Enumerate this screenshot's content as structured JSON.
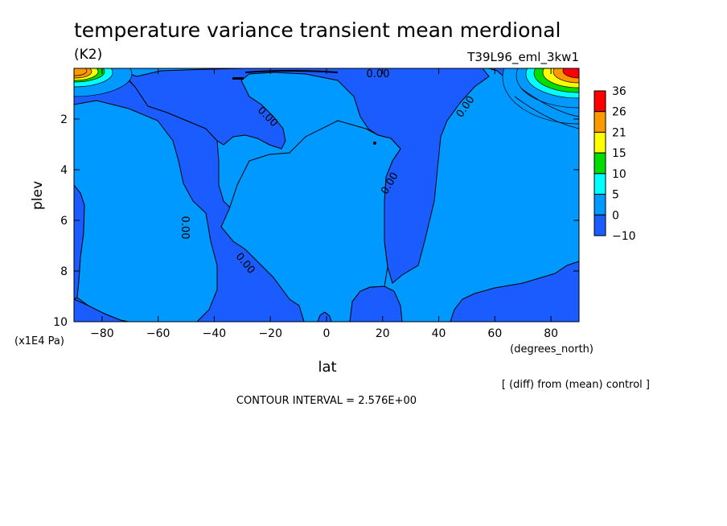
{
  "chart_data": {
    "type": "contour",
    "title": "temperature variance transient mean merdional",
    "units": "(K2)",
    "run_label": "T39L96_eml_3kw1",
    "xlabel": "lat",
    "x_units": "(degrees_north)",
    "ylabel": "plev",
    "y_units": "(x1E4 Pa)",
    "xlim": [
      -90,
      90
    ],
    "ylim": [
      10,
      0
    ],
    "x_ticks": [
      -80,
      -60,
      -40,
      -20,
      0,
      20,
      40,
      60,
      80
    ],
    "y_ticks": [
      2,
      4,
      6,
      8,
      10
    ],
    "x_tick_labels": [
      "−80",
      "−60",
      "−40",
      "−20",
      "0",
      "20",
      "40",
      "60",
      "80"
    ],
    "y_tick_labels": [
      "2",
      "4",
      "6",
      "8",
      "10"
    ],
    "contour_labels": [
      "0.00",
      "0.00",
      "0.00",
      "0.00",
      "0.00",
      "0.00"
    ],
    "colorbar": {
      "levels": [
        "36",
        "26",
        "21",
        "15",
        "10",
        "5",
        "0",
        "−10"
      ],
      "colors": [
        "#ff0000",
        "#ff9900",
        "#ffff00",
        "#00dd00",
        "#00ffff",
        "#0099ff",
        "#1a5cff"
      ]
    },
    "fill_colors": {
      "negative": "#1a5cff",
      "zero_band": "#0099ff"
    },
    "note": "[ (diff) from (mean) control ]",
    "contour_interval": "CONTOUR INTERVAL = 2.576E+00"
  }
}
